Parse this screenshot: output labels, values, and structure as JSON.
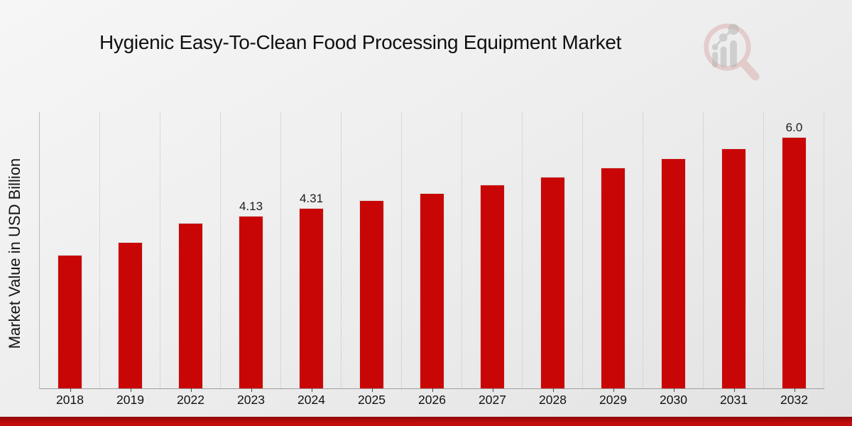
{
  "page": {
    "title": "Hygienic Easy-To-Clean Food Processing Equipment Market"
  },
  "chart_data": {
    "type": "bar",
    "title": "Hygienic Easy-To-Clean Food Processing Equipment Market",
    "xlabel": "",
    "ylabel": "Market Value in USD Billion",
    "categories": [
      "2018",
      "2019",
      "2022",
      "2023",
      "2024",
      "2025",
      "2026",
      "2027",
      "2028",
      "2029",
      "2030",
      "2031",
      "2032"
    ],
    "values": [
      3.19,
      3.5,
      3.96,
      4.13,
      4.31,
      4.5,
      4.67,
      4.87,
      5.06,
      5.28,
      5.5,
      5.74,
      6.0
    ],
    "bar_labels": [
      "",
      "",
      "",
      "4.13",
      "4.31",
      "",
      "",
      "",
      "",
      "",
      "",
      "",
      "6.0"
    ],
    "ylim": [
      0,
      6.6
    ],
    "bar_color": "#c90606",
    "grid": "vertical-dotted",
    "legend": "none"
  },
  "footer_band": {
    "color_top": "#8f0909",
    "color_bottom": "#c30c0c"
  },
  "logo": {
    "name": "magnifier-bar-chart-logo",
    "ring_color": "#d89b9b",
    "glyph_color": "#b5b5b5"
  }
}
